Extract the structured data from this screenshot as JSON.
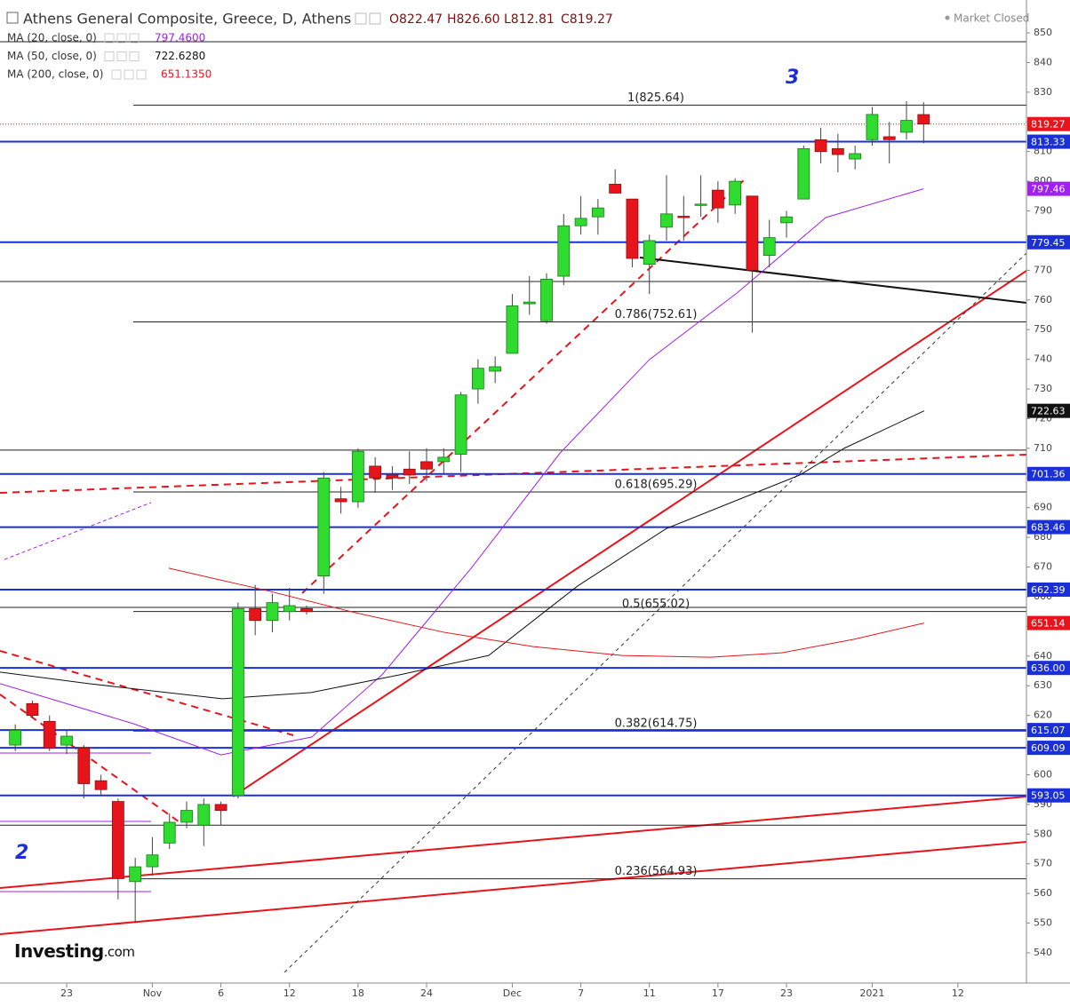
{
  "header": {
    "title": "Athens General Composite, Greece, D, Athens",
    "ohlc": [
      "O822.47",
      "H826.60",
      "L812.81",
      "C819.27"
    ],
    "status": "Market Closed",
    "logo": {
      "brand": "Investing",
      "suffix": ".com"
    }
  },
  "chart_data": {
    "type": "candlestick",
    "x": [
      -3,
      -2,
      -1,
      0,
      1,
      2,
      3,
      4,
      5,
      6,
      7,
      8,
      9,
      10,
      11,
      12,
      13,
      14,
      15,
      16,
      17,
      18,
      19,
      20,
      21,
      22,
      23,
      24,
      25,
      26,
      27,
      28,
      29,
      30,
      31,
      32,
      33,
      34,
      35,
      36,
      37,
      38,
      39,
      40,
      41,
      42,
      43,
      44,
      45,
      46,
      47,
      48,
      49,
      50
    ],
    "open": [
      610,
      624,
      618,
      610,
      609,
      598,
      591,
      564,
      569,
      577,
      584,
      583,
      590,
      593,
      656,
      652,
      655,
      656,
      667,
      693,
      692,
      704,
      701,
      703,
      705.5,
      705.5,
      708,
      730,
      736,
      742,
      758.7,
      753,
      768,
      785,
      788,
      799,
      794,
      772,
      784.5,
      788.2,
      792,
      797,
      792,
      795,
      775,
      786,
      794,
      814,
      811,
      807.5,
      814,
      815,
      816.5,
      822.47
    ],
    "high": [
      617,
      625,
      620,
      615,
      610,
      600,
      592,
      572,
      579,
      587,
      591,
      592,
      591,
      658,
      664,
      661,
      663,
      657,
      702,
      697,
      710,
      707,
      704,
      709,
      710,
      710,
      729,
      740,
      741,
      762,
      768,
      769,
      789,
      795,
      794,
      804,
      794,
      782,
      802,
      795,
      802,
      800,
      801,
      795,
      787,
      790,
      812,
      818,
      816,
      812,
      825,
      820,
      827,
      826.6
    ],
    "low": [
      608,
      619,
      608,
      607,
      592,
      593,
      558,
      550,
      566,
      575,
      582,
      576,
      583,
      592,
      647,
      648,
      652,
      654,
      661,
      688,
      690,
      695,
      696,
      698,
      699,
      701,
      702,
      725,
      732,
      742,
      755,
      752,
      765,
      782,
      782,
      796,
      771,
      762,
      780,
      780,
      788,
      786,
      789,
      749,
      771,
      781,
      794,
      806,
      803,
      804,
      812,
      806,
      814,
      812.81
    ],
    "close": [
      615,
      620,
      609,
      613,
      597,
      595,
      565,
      569,
      573,
      584,
      588,
      590,
      588,
      656,
      652,
      658,
      657,
      655,
      700,
      692,
      709,
      700,
      700,
      701,
      703,
      707,
      728,
      737,
      737.5,
      758,
      759.3,
      767,
      785,
      787.5,
      791,
      796,
      774,
      780,
      789,
      788,
      792.3,
      791,
      800,
      770,
      781,
      788,
      811,
      810,
      809,
      809.3,
      822.5,
      814,
      820.5,
      819.27
    ],
    "up_color": "#2edb2e",
    "down_color": "#e8141c",
    "moving_averages": [
      {
        "name": "MA (20, close, 0)",
        "legend_value": "797.4600",
        "color": "#a020f0",
        "x": [
          -3.89,
          3.9,
          9,
          14.3,
          18.4,
          23.6,
          28.8,
          34,
          39.1,
          44.3,
          50
        ],
        "values": [
          630.7,
          617.2,
          606.7,
          612.7,
          633.7,
          669.6,
          708.5,
          739.9,
          762.3,
          787.8,
          797.46
        ]
      },
      {
        "name": "MA (50, close, 0)",
        "legend_value": "722.6280",
        "color": "#111111",
        "x": [
          -3.89,
          1.3,
          9.07,
          14.26,
          19.44,
          24.62,
          29.81,
          35,
          40.18,
          42.77,
          45.36,
          50.03
        ],
        "values": [
          634.6,
          630.7,
          625.6,
          627.7,
          633.7,
          640.2,
          663.6,
          683,
          695,
          701,
          710,
          722.63
        ]
      },
      {
        "name": "MA (200, close, 0)",
        "legend_value": "651.1350",
        "color": "#e8141c",
        "x": [
          5.96,
          11.66,
          16.85,
          22.03,
          27.22,
          32.4,
          37.58,
          41.73,
          45.88,
          50.03
        ],
        "values": [
          669.6,
          662.1,
          654.6,
          648,
          643.2,
          640.2,
          639.6,
          641.1,
          645.6,
          651.14
        ]
      }
    ],
    "levels": [
      813.33,
      779.45,
      701.36,
      683.46,
      662.39,
      {
        "value": 636,
        "label": "636.00"
      },
      615.07,
      609.09,
      593.05
    ],
    "fib_levels": [
      {
        "value": 825.64,
        "label": "1(825.64)"
      },
      {
        "value": 752.61,
        "label": "0.786(752.61)"
      },
      {
        "value": 695.29,
        "label": "0.618(695.29)"
      },
      {
        "value": 655.02,
        "label": "0.5(655.02)"
      },
      {
        "value": 614.75,
        "label": "0.382(614.75)"
      },
      {
        "value": 564.93,
        "label": "0.236(564.93)"
      }
    ],
    "reference_lines": [
      847,
      766.2,
      709.4,
      656.4,
      583
    ],
    "annotations": [
      "3",
      "2"
    ],
    "ylim": [
      540,
      850
    ],
    "yticks": [
      540,
      550,
      560,
      570,
      580,
      590,
      600,
      610,
      620,
      630,
      640,
      650,
      660,
      670,
      680,
      690,
      700,
      710,
      720,
      730,
      740,
      750,
      760,
      770,
      780,
      790,
      800,
      810,
      820,
      830,
      840,
      850
    ],
    "xlim": [
      -3.89,
      56
    ],
    "xticks": [
      {
        "value": 0,
        "label": "23"
      },
      {
        "value": 5,
        "label": "Nov"
      },
      {
        "value": 9,
        "label": "6"
      },
      {
        "value": 13,
        "label": "12"
      },
      {
        "value": 17,
        "label": "18"
      },
      {
        "value": 21,
        "label": "24"
      },
      {
        "value": 26,
        "label": "Dec"
      },
      {
        "value": 30,
        "label": "7"
      },
      {
        "value": 34,
        "label": "11"
      },
      {
        "value": 38,
        "label": "17"
      },
      {
        "value": 42,
        "label": "23"
      },
      {
        "value": 47,
        "label": "2021"
      },
      {
        "value": 52,
        "label": "12"
      }
    ]
  }
}
